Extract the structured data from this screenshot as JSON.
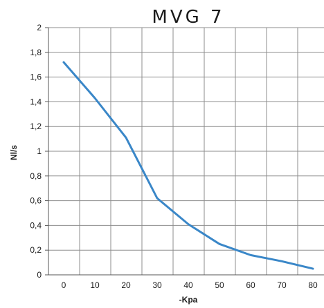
{
  "chart_data": {
    "type": "line",
    "title": "MVG 7",
    "xlabel": "-Kpa",
    "ylabel": "Nl/s",
    "x_ticks": [
      "0",
      "10",
      "20",
      "30",
      "40",
      "50",
      "60",
      "70",
      "80"
    ],
    "y_ticks": [
      "0",
      "0,2",
      "0,4",
      "0,6",
      "0,8",
      "1",
      "1,2",
      "1,4",
      "1,6",
      "1,8",
      "2"
    ],
    "xlim": [
      0,
      80
    ],
    "ylim": [
      0,
      2
    ],
    "grid": true,
    "series": [
      {
        "color": "#3a87c8",
        "x": [
          0,
          10,
          20,
          30,
          40,
          50,
          60,
          70,
          80
        ],
        "y": [
          1.72,
          1.43,
          1.11,
          0.62,
          0.41,
          0.25,
          0.16,
          0.11,
          0.05
        ]
      }
    ]
  }
}
